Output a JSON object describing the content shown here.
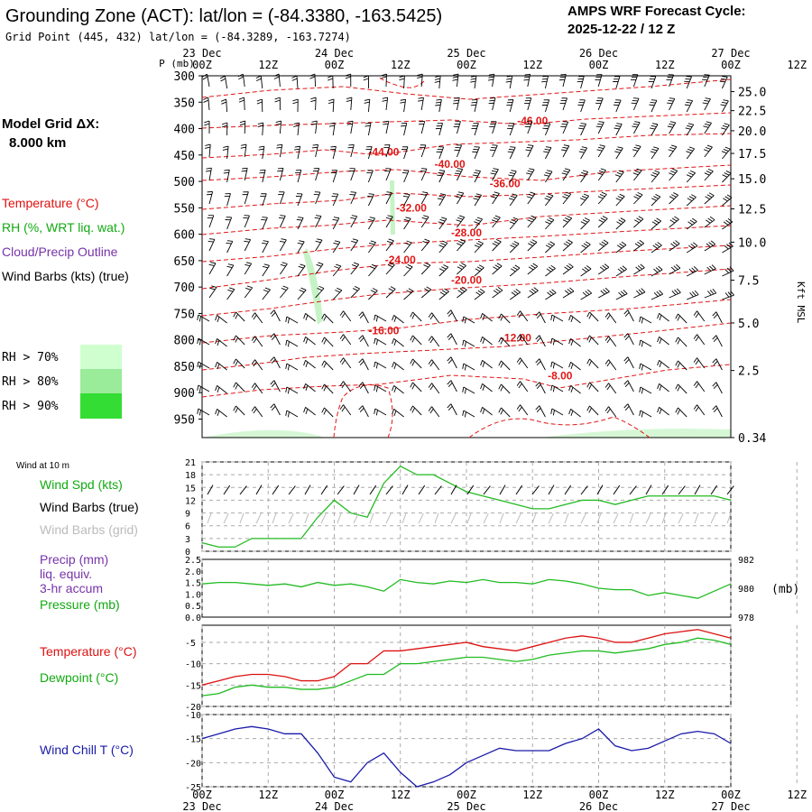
{
  "header": {
    "title": "Grounding Zone (ACT):  lat/lon = (-84.3380, -163.5425)",
    "grid_line": "Grid Point (445, 432) lat/lon = (-84.3289, -163.7274)",
    "cycle_label": "AMPS WRF Forecast Cycle:",
    "cycle_value": "2025-12-22 / 12  Z",
    "model_grid_label": "Model Grid ΔX:",
    "model_grid_value": "8.000 km"
  },
  "time_axis": {
    "hours": [
      "00Z",
      "12Z",
      "00Z",
      "12Z",
      "00Z",
      "12Z",
      "00Z",
      "12Z",
      "00Z",
      "12Z"
    ],
    "days": [
      "23 Dec",
      "24 Dec",
      "25 Dec",
      "26 Dec",
      "27 Dec"
    ],
    "first_tick_hour_offset": 12
  },
  "legends": {
    "upper": [
      {
        "text": "Temperature (°C)",
        "color": "#dd1111"
      },
      {
        "text": "RH (%, WRT liq. wat.)",
        "color": "#11aa11"
      },
      {
        "text": "Cloud/Precip Outline",
        "color": "#7733aa"
      },
      {
        "text": "Wind Barbs (kts) (true)",
        "color": "#000000"
      }
    ],
    "rh_bins": [
      {
        "text": "RH > 70%",
        "color": "#cfffcf"
      },
      {
        "text": "RH > 80%",
        "color": "#9aeb9a"
      },
      {
        "text": "RH > 90%",
        "color": "#33dd33"
      }
    ],
    "wind_heading": "Wind at 10 m",
    "wind": [
      {
        "text": "Wind Spd (kts)",
        "color": "#11aa11"
      },
      {
        "text": "Wind Barbs (true)",
        "color": "#000000"
      },
      {
        "text": "Wind Barbs (grid)",
        "color": "#bbbbbb"
      }
    ],
    "precip": [
      {
        "text": "Precip (mm)",
        "color": "#7733aa"
      },
      {
        "text": "liq. equiv.",
        "color": "#7733aa"
      },
      {
        "text": "3-hr accum",
        "color": "#7733aa"
      },
      {
        "text": "Pressure (mb)",
        "color": "#11aa11"
      }
    ],
    "temp": [
      {
        "text": "Temperature (°C)",
        "color": "#dd1111"
      },
      {
        "text": "Dewpoint (°C)",
        "color": "#11aa11"
      }
    ],
    "windchill": [
      {
        "text": "Wind Chill T (°C)",
        "color": "#1a1aaa"
      }
    ]
  },
  "chart_data": [
    {
      "type": "line",
      "panel": "time-pressure cross section",
      "yaxis_label": "P (mb)",
      "y_pressure_ticks": [
        300,
        350,
        400,
        450,
        500,
        550,
        600,
        650,
        700,
        750,
        800,
        850,
        900,
        950
      ],
      "y_right_label": "Kft MSL",
      "y_right_ticks": [
        {
          "label": "25.0",
          "p": 330
        },
        {
          "label": "22.5",
          "p": 366
        },
        {
          "label": "20.0",
          "p": 404
        },
        {
          "label": "17.5",
          "p": 447
        },
        {
          "label": "15.0",
          "p": 495
        },
        {
          "label": "12.5",
          "p": 552
        },
        {
          "label": "10.0",
          "p": 615
        },
        {
          "label": "7.5",
          "p": 687
        },
        {
          "label": "5.0",
          "p": 768
        },
        {
          "label": "2.5",
          "p": 858
        },
        {
          "label": "0.34",
          "p": 985
        }
      ],
      "temperature_labels": [
        {
          "text": "-46.00",
          "t": 60,
          "p": 392
        },
        {
          "text": "-44.00",
          "t": 33,
          "p": 451
        },
        {
          "text": "-40.00",
          "t": 45,
          "p": 474
        },
        {
          "text": "-36.00",
          "t": 55,
          "p": 511
        },
        {
          "text": "-32.00",
          "t": 38,
          "p": 557
        },
        {
          "text": "-28.00",
          "t": 48,
          "p": 604
        },
        {
          "text": "-24.00",
          "t": 36,
          "p": 655
        },
        {
          "text": "-20.00",
          "t": 48,
          "p": 694
        },
        {
          "text": "-16.00",
          "t": 33,
          "p": 789
        },
        {
          "text": "-12.00",
          "t": 57,
          "p": 803
        },
        {
          "text": "-8.00",
          "t": 65,
          "p": 875
        }
      ]
    },
    {
      "type": "line",
      "panel": "10 m wind speed",
      "y_ticks": [
        0,
        3,
        6,
        9,
        12,
        15,
        18,
        21
      ],
      "ylim": [
        0,
        21
      ],
      "series": [
        {
          "name": "Wind Spd (kts)",
          "color": "#22bb22",
          "x": [
            0,
            3,
            6,
            9,
            12,
            15,
            18,
            21,
            24,
            27,
            30,
            33,
            36,
            39,
            42,
            45,
            48,
            51,
            54,
            57,
            60,
            63,
            66,
            69,
            72,
            75,
            78,
            81,
            84,
            87,
            90,
            93,
            96
          ],
          "values": [
            2,
            1,
            1,
            3,
            3,
            3,
            3,
            8,
            12,
            9,
            8,
            16,
            20,
            18,
            18,
            16,
            14,
            13,
            12,
            11,
            10,
            10,
            11,
            12,
            12,
            11,
            12,
            13,
            13,
            13,
            13,
            13,
            12
          ]
        }
      ]
    },
    {
      "type": "line",
      "panel": "precip and pressure",
      "y_left_ticks": [
        "0.0",
        "0.5",
        "1.0",
        "1.5",
        "2.0",
        "2.5"
      ],
      "ylim_left": [
        0,
        2.5
      ],
      "y_right_ticks": [
        "982",
        "980",
        "978"
      ],
      "y_right_unit": "(mb)",
      "ylim_right": [
        978,
        982
      ],
      "series": [
        {
          "name": "Pressure (mb)",
          "color": "#22bb22",
          "x": [
            0,
            3,
            6,
            9,
            12,
            15,
            18,
            21,
            24,
            27,
            30,
            33,
            36,
            39,
            42,
            45,
            48,
            51,
            54,
            57,
            60,
            63,
            66,
            69,
            72,
            75,
            78,
            81,
            84,
            87,
            90,
            93,
            96
          ],
          "values": [
            980.3,
            980.4,
            980.4,
            980.3,
            980.2,
            980.3,
            980.1,
            980.4,
            980.2,
            980.3,
            980.1,
            979.8,
            980.6,
            980.4,
            980.3,
            980.5,
            980.4,
            980.6,
            980.4,
            980.4,
            980.3,
            980.6,
            980.5,
            980.3,
            980.0,
            979.9,
            979.9,
            979.5,
            979.7,
            979.5,
            979.3,
            979.8,
            980.3
          ]
        }
      ]
    },
    {
      "type": "line",
      "panel": "temperature and dewpoint",
      "y_ticks": [
        -5,
        -10,
        -15,
        -20
      ],
      "ylim": [
        -20,
        -1
      ],
      "series": [
        {
          "name": "Temperature (°C)",
          "color": "#dd1111",
          "x": [
            0,
            3,
            6,
            9,
            12,
            15,
            18,
            21,
            24,
            27,
            30,
            33,
            36,
            39,
            42,
            45,
            48,
            51,
            54,
            57,
            60,
            63,
            66,
            69,
            72,
            75,
            78,
            81,
            84,
            87,
            90,
            93,
            96
          ],
          "values": [
            -15,
            -14,
            -13,
            -12.5,
            -12.5,
            -13,
            -14,
            -14,
            -13,
            -10,
            -10,
            -7,
            -7,
            -6.5,
            -6,
            -5.5,
            -5,
            -6,
            -6.5,
            -7,
            -6,
            -5,
            -4,
            -3.5,
            -4,
            -5,
            -5,
            -4,
            -3,
            -2.5,
            -2,
            -3,
            -4
          ]
        },
        {
          "name": "Dewpoint (°C)",
          "color": "#22bb22",
          "x": [
            0,
            3,
            6,
            9,
            12,
            15,
            18,
            21,
            24,
            27,
            30,
            33,
            36,
            39,
            42,
            45,
            48,
            51,
            54,
            57,
            60,
            63,
            66,
            69,
            72,
            75,
            78,
            81,
            84,
            87,
            90,
            93,
            96
          ],
          "values": [
            -17.5,
            -17,
            -15.5,
            -15,
            -15.5,
            -15.5,
            -16,
            -16,
            -15.5,
            -14,
            -12.5,
            -12.5,
            -10,
            -10,
            -9.5,
            -9,
            -8.5,
            -8.5,
            -9,
            -9.5,
            -9,
            -8,
            -7.5,
            -7,
            -7,
            -7.5,
            -7,
            -6.5,
            -5.5,
            -5,
            -4,
            -4.5,
            -5.5
          ]
        }
      ]
    },
    {
      "type": "line",
      "panel": "wind chill",
      "y_ticks": [
        -10,
        -15,
        -20,
        -25
      ],
      "ylim": [
        -25,
        -10
      ],
      "series": [
        {
          "name": "Wind Chill T (°C)",
          "color": "#1a1aaa",
          "x": [
            0,
            3,
            6,
            9,
            12,
            15,
            18,
            21,
            24,
            27,
            30,
            33,
            36,
            39,
            42,
            45,
            48,
            51,
            54,
            57,
            60,
            63,
            66,
            69,
            72,
            75,
            78,
            81,
            84,
            87,
            90,
            93,
            96
          ],
          "values": [
            -15,
            -14,
            -13,
            -12.5,
            -13,
            -14,
            -14,
            -18,
            -23,
            -24,
            -20,
            -18,
            -22,
            -25,
            -24,
            -22.5,
            -20,
            -18.5,
            -17,
            -17.5,
            -17.5,
            -17.5,
            -16,
            -15,
            -13,
            -16.5,
            -17.5,
            -17,
            -15.5,
            -14,
            -13.5,
            -14,
            -16
          ]
        }
      ]
    }
  ]
}
